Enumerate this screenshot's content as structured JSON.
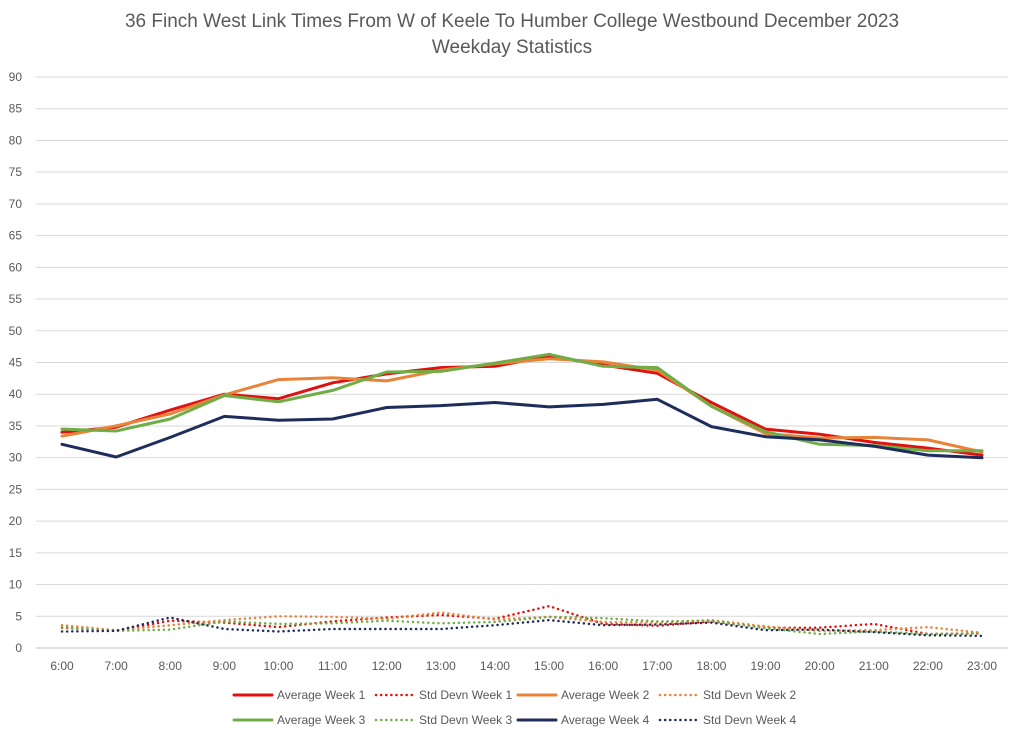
{
  "chart_data": {
    "type": "line",
    "title": "36 Finch West Link Times From W of Keele To Humber College Westbound December 2023",
    "subtitle": "Weekday Statistics",
    "xlabel": "",
    "ylabel": "",
    "ylim": [
      0,
      90
    ],
    "ytick_step": 5,
    "grid": true,
    "legend_position": "bottom",
    "categories": [
      "6:00",
      "7:00",
      "8:00",
      "9:00",
      "10:00",
      "11:00",
      "12:00",
      "13:00",
      "14:00",
      "15:00",
      "16:00",
      "17:00",
      "18:00",
      "19:00",
      "20:00",
      "21:00",
      "22:00",
      "23:00"
    ],
    "series": [
      {
        "name": "Average Week 1",
        "style": "solid",
        "color": "#e0110f",
        "values": [
          34.0,
          34.8,
          37.5,
          40.0,
          39.3,
          41.8,
          43.2,
          44.2,
          44.4,
          46.0,
          44.6,
          43.3,
          38.7,
          34.5,
          33.7,
          32.4,
          31.5,
          30.4
        ]
      },
      {
        "name": "Std Devn Week 1",
        "style": "dotted",
        "color": "#e0110f",
        "values": [
          3.2,
          2.7,
          4.3,
          4.0,
          3.3,
          4.2,
          4.8,
          5.2,
          4.6,
          6.6,
          3.8,
          3.5,
          4.2,
          3.2,
          3.2,
          3.8,
          2.2,
          2.3
        ]
      },
      {
        "name": "Average Week 2",
        "style": "solid",
        "color": "#e8843a",
        "values": [
          33.4,
          35.0,
          36.9,
          39.9,
          42.3,
          42.6,
          42.1,
          43.8,
          44.8,
          45.6,
          45.1,
          43.8,
          38.1,
          33.8,
          33.1,
          33.2,
          32.8,
          30.9
        ]
      },
      {
        "name": "Std Devn Week 2",
        "style": "dotted",
        "color": "#e8843a",
        "values": [
          3.6,
          2.8,
          3.6,
          4.4,
          5.0,
          4.9,
          4.6,
          5.6,
          4.5,
          4.9,
          4.1,
          4.0,
          4.4,
          3.4,
          2.7,
          2.8,
          3.3,
          2.4
        ]
      },
      {
        "name": "Average Week 3",
        "style": "solid",
        "color": "#70ad47",
        "values": [
          34.5,
          34.2,
          36.1,
          39.8,
          38.8,
          40.6,
          43.5,
          43.6,
          44.9,
          46.3,
          44.4,
          44.2,
          38.1,
          34.1,
          32.1,
          31.9,
          31.1,
          31.1
        ]
      },
      {
        "name": "Std Devn Week 3",
        "style": "dotted",
        "color": "#70ad47",
        "values": [
          3.3,
          2.7,
          2.9,
          4.2,
          3.8,
          3.9,
          4.3,
          3.9,
          4.1,
          4.9,
          4.7,
          4.2,
          4.3,
          3.1,
          2.2,
          2.6,
          2.2,
          2.3
        ]
      },
      {
        "name": "Average Week 4",
        "style": "solid",
        "color": "#1f2d5c",
        "values": [
          32.1,
          30.1,
          33.2,
          36.5,
          35.9,
          36.1,
          37.9,
          38.2,
          38.7,
          38.0,
          38.4,
          39.2,
          34.9,
          33.3,
          32.8,
          31.8,
          30.4,
          30.0
        ]
      },
      {
        "name": "Std Devn Week 4",
        "style": "dotted",
        "color": "#1f2d5c",
        "values": [
          2.6,
          2.7,
          4.8,
          3.0,
          2.6,
          3.0,
          3.0,
          3.0,
          3.6,
          4.4,
          3.6,
          3.7,
          4.0,
          2.8,
          2.9,
          2.5,
          2.0,
          1.9
        ]
      }
    ]
  }
}
